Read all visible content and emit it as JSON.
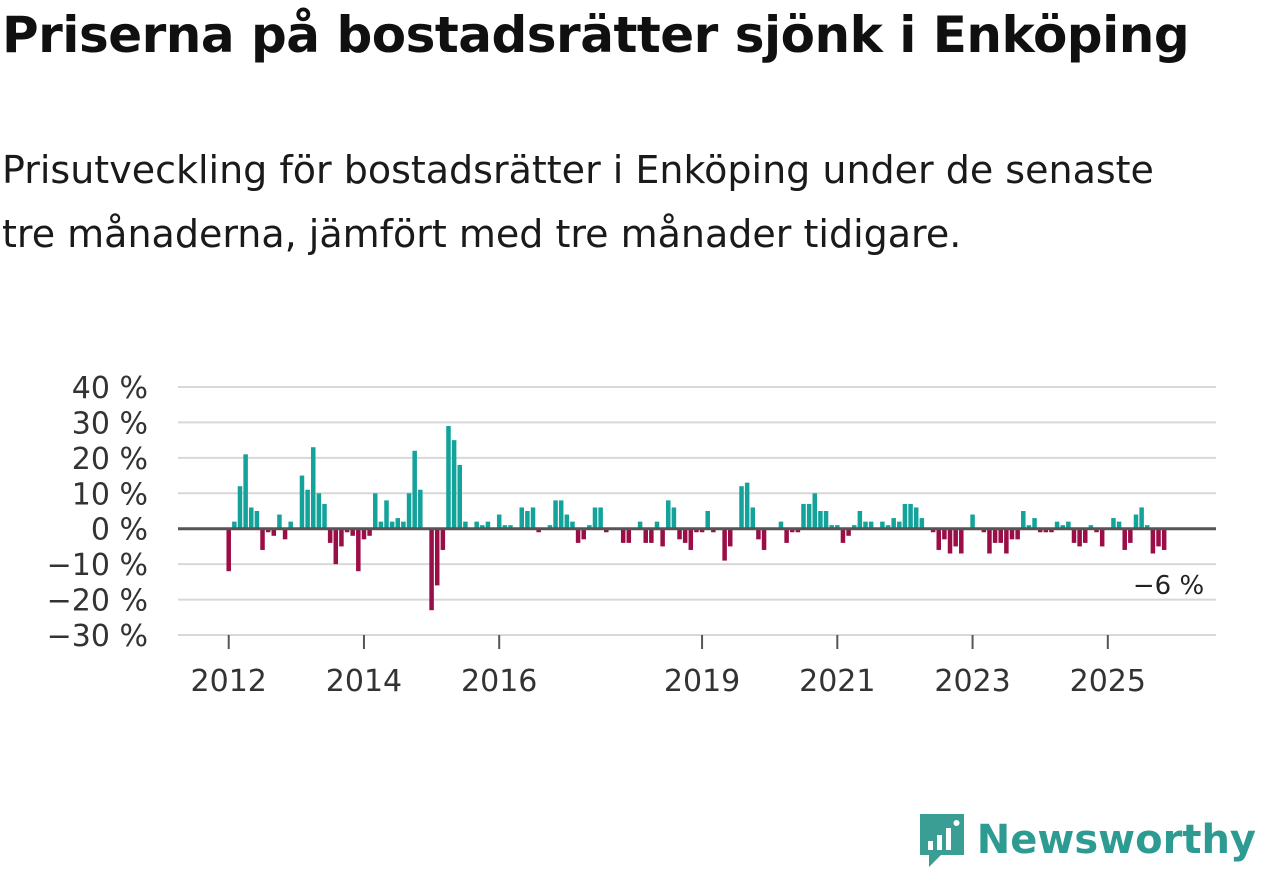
{
  "title": "Priserna på bostadsrätter sjönk i Enköping",
  "subtitle": "Prisutveckling för bostadsrätter i Enköping under de senaste tre månaderna, jämfört med tre månader tidigare.",
  "brand": {
    "name": "Newsworthy",
    "icon": "newsworthy-logo-icon",
    "color": "#3a9e95"
  },
  "colors": {
    "positive": "#13a39b",
    "negative": "#9b0d46",
    "grid": "#d8d8d8",
    "zero": "#555555",
    "axis_text": "#333333"
  },
  "chart_data": {
    "type": "bar",
    "title": "Priserna på bostadsrätter sjönk i Enköping",
    "ylabel": "",
    "xlabel": "",
    "unit": "%",
    "ylim": [
      -30,
      40
    ],
    "yticks": [
      40,
      30,
      20,
      10,
      0,
      -10,
      -20,
      -30
    ],
    "ytick_labels": [
      "40 %",
      "30 %",
      "20 %",
      "10 %",
      "0 %",
      "−10 %",
      "−20 %",
      "−30 %"
    ],
    "xlim": [
      2011.25,
      2026.6
    ],
    "xticks": [
      2012,
      2014,
      2016,
      2019,
      2021,
      2023,
      2025
    ],
    "xtick_labels": [
      "2012",
      "2014",
      "2016",
      "2019",
      "2021",
      "2023",
      "2025"
    ],
    "series_start": 2012.0,
    "step_months": 1,
    "grid": true,
    "last_value_label": "−6 %",
    "values": [
      -12,
      2,
      12,
      21,
      6,
      5,
      -6,
      -1,
      -2,
      4,
      -3,
      2,
      0,
      15,
      11,
      23,
      10,
      7,
      -4,
      -10,
      -5,
      -1,
      -2,
      -12,
      -3,
      -2,
      10,
      2,
      8,
      2,
      3,
      2,
      10,
      22,
      11,
      0,
      -23,
      -16,
      -6,
      29,
      25,
      18,
      2,
      0,
      2,
      1,
      2,
      0,
      4,
      1,
      1,
      0,
      6,
      5,
      6,
      -1,
      0,
      1,
      8,
      8,
      4,
      2,
      -4,
      -3,
      1,
      6,
      6,
      -1,
      0,
      0,
      -4,
      -4,
      0,
      2,
      -4,
      -4,
      2,
      -5,
      8,
      6,
      -3,
      -4,
      -6,
      -1,
      -1,
      5,
      -1,
      0,
      -9,
      -5,
      0,
      12,
      13,
      6,
      -3,
      -6,
      0,
      0,
      2,
      -4,
      -1,
      -1,
      7,
      7,
      10,
      5,
      5,
      1,
      1,
      -4,
      -2,
      1,
      5,
      2,
      2,
      0,
      2,
      1,
      3,
      2,
      7,
      7,
      6,
      3,
      0,
      -1,
      -6,
      -3,
      -7,
      -5,
      -7,
      0,
      4,
      0,
      -1,
      -7,
      -4,
      -4,
      -7,
      -3,
      -3,
      5,
      1,
      3,
      -1,
      -1,
      -1,
      2,
      1,
      2,
      -4,
      -5,
      -4,
      1,
      -1,
      -5,
      0,
      3,
      2,
      -6,
      -4,
      4,
      6,
      1,
      -7,
      -5,
      -6
    ]
  }
}
